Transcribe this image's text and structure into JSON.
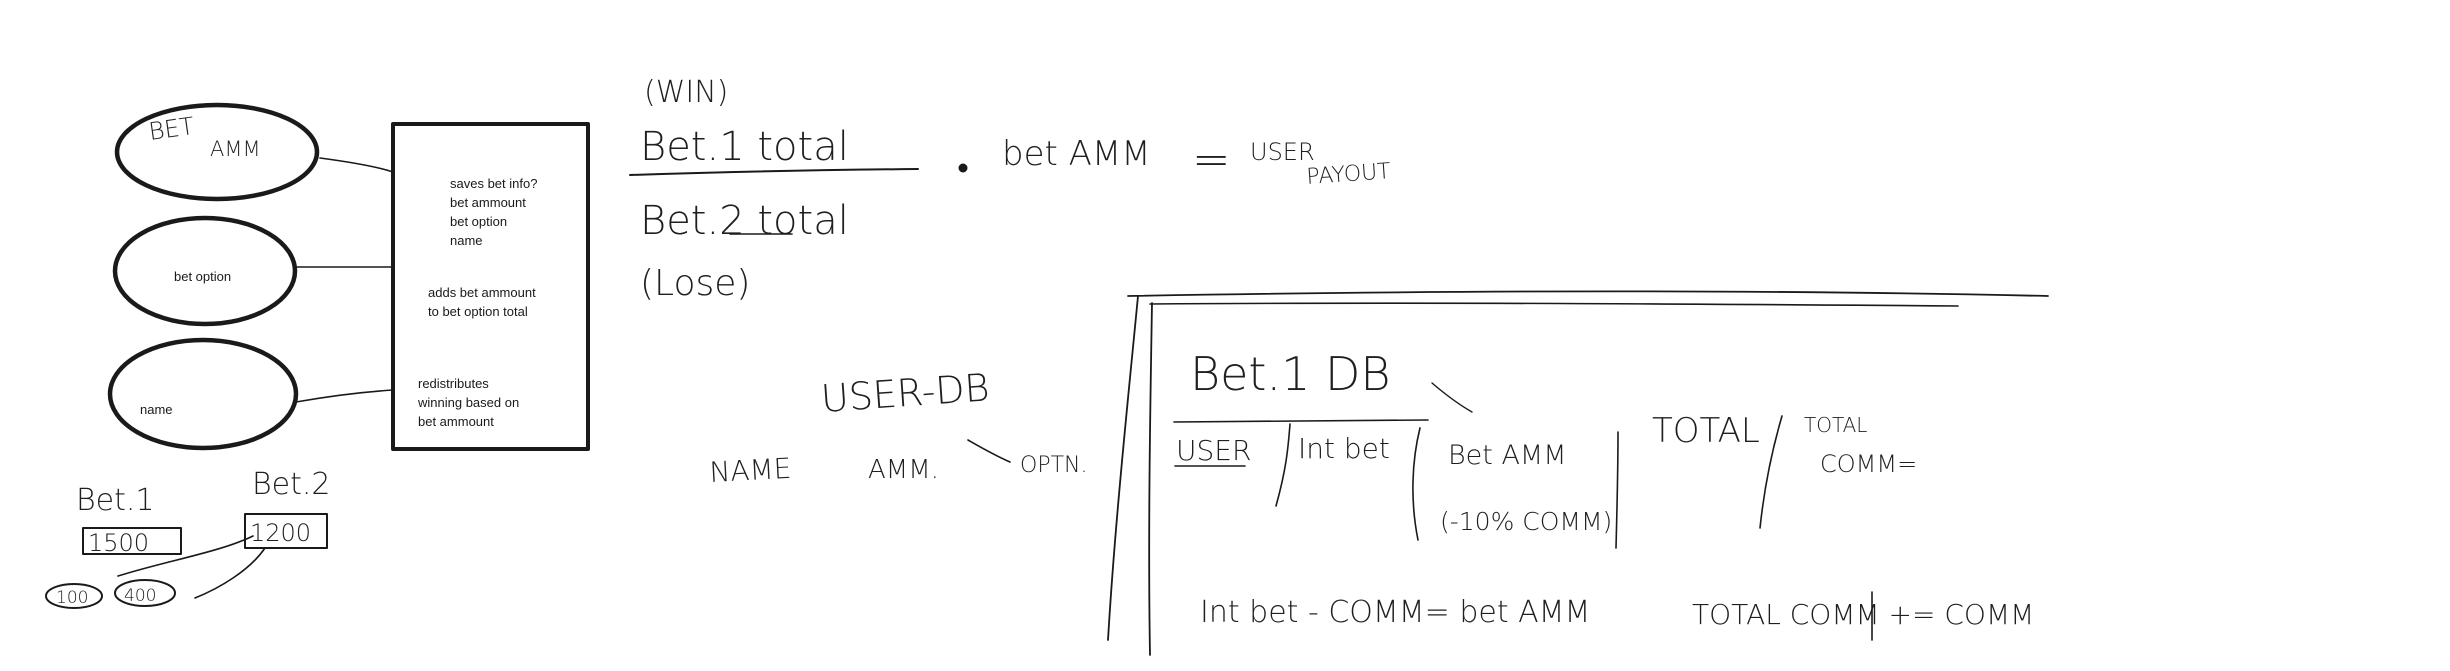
{
  "ellipses": {
    "bet_amm": [
      "BET",
      "AMM"
    ],
    "bet_option": "bet option",
    "name": "name"
  },
  "process_box": {
    "step1": [
      "saves bet info?",
      "bet ammount",
      "bet option",
      "name"
    ],
    "step2": [
      "adds bet ammount",
      "to bet option total"
    ],
    "step3": [
      "redistributes",
      "winning based on",
      "bet ammount"
    ]
  },
  "example": {
    "bet1_label": "Bet.1",
    "bet1_value": "1500",
    "bet2_label": "Bet.2",
    "bet2_value": "1200",
    "sub1": "100",
    "sub2": "400"
  },
  "formula": {
    "win": "(WIN)",
    "numerator": "Bet.1 total",
    "denominator": "Bet.2 total",
    "lose": "(Lose)",
    "times": "bet AMM",
    "equals": "=",
    "result_line1": "USER",
    "result_line2": "PAYOUT"
  },
  "user_db": {
    "title": "USER-DB",
    "col_name": "NAME",
    "col_amm": "AMM.",
    "col_optn": "OPTN."
  },
  "bet_db": {
    "title": "Bet.1 DB",
    "col_user": "USER",
    "col_init": "Int bet",
    "col_betamm": "Bet AMM",
    "col_betamm_note": "(-10% COMM)",
    "col_total": "TOTAL",
    "col_total_comm": [
      "TOTAL",
      "COMM="
    ],
    "formula1": "Int bet - COMM= bet AMM",
    "formula2": "TOTAL COMM += COMM"
  }
}
